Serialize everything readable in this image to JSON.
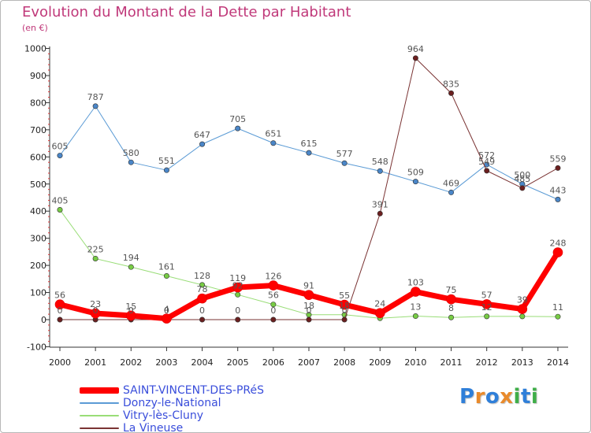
{
  "title": "Evolution du Montant de la Dette par Habitant",
  "subtitle": "(en €)",
  "logo": {
    "text": "Proxiti",
    "letters": [
      "P",
      "r",
      "o",
      "x",
      "i",
      "t",
      "i"
    ],
    "colors": [
      "#2f7fd9",
      "#e98a2b",
      "#2f7fd9",
      "#e98a2b",
      "#3fae49",
      "#2f7fd9",
      "#3fae49"
    ]
  },
  "chart_data": {
    "type": "line",
    "title": "Evolution du Montant de la Dette par Habitant",
    "subtitle": "(en €)",
    "x": [
      "2000",
      "2001",
      "2002",
      "2003",
      "2004",
      "2005",
      "2006",
      "2007",
      "2008",
      "2009",
      "2010",
      "2011",
      "2012",
      "2013",
      "2014"
    ],
    "ylim": [
      -100,
      1000
    ],
    "yticks": [
      "-100",
      "0",
      "100",
      "200",
      "300",
      "400",
      "500",
      "600",
      "700",
      "800",
      "900",
      "1000"
    ],
    "grid": false,
    "legend_position": "bottom-left",
    "series": [
      {
        "name": "SAINT-VINCENT-DES-PRéS",
        "color": "#ff0000",
        "marker": "#ff0000",
        "width": 7,
        "values": [
          56,
          23,
          15,
          4,
          78,
          119,
          126,
          91,
          55,
          24,
          103,
          75,
          57,
          39,
          248
        ],
        "labels": [
          "56",
          "23",
          "15",
          "4",
          "78",
          "119",
          "126",
          "91",
          "55",
          "24",
          "103",
          "75",
          "57",
          "39",
          "248"
        ]
      },
      {
        "name": "Donzy-le-National",
        "color": "#5b9bd5",
        "marker": "#4a86c8",
        "width": 1,
        "values": [
          605,
          787,
          580,
          551,
          647,
          705,
          651,
          615,
          577,
          548,
          509,
          469,
          572,
          500,
          443
        ],
        "labels": [
          "605",
          "787",
          "580",
          "551",
          "647",
          "705",
          "651",
          "615",
          "577",
          "548",
          "509",
          "469",
          "572",
          "500",
          "443"
        ]
      },
      {
        "name": "Vitry-lès-Cluny",
        "color": "#99dd77",
        "marker": "#77cc44",
        "width": 1,
        "values": [
          405,
          225,
          194,
          161,
          128,
          92,
          56,
          18,
          18,
          5,
          13,
          8,
          12,
          12,
          11
        ],
        "labels": [
          "405",
          "225",
          "194",
          "161",
          "128",
          "92",
          "56",
          "18",
          "18",
          "",
          "13",
          "8",
          "12",
          "",
          "11"
        ]
      },
      {
        "name": "La Vineuse",
        "color": "#7a3333",
        "marker": "#6b1f1f",
        "width": 1,
        "values": [
          0,
          0,
          0,
          0,
          0,
          0,
          0,
          0,
          0,
          391,
          964,
          835,
          549,
          485,
          559
        ],
        "labels": [
          "0",
          "0",
          "0",
          "0",
          "0",
          "0",
          "0",
          "0",
          "0",
          "391",
          "964",
          "835",
          "549",
          "485",
          "559"
        ]
      }
    ]
  }
}
